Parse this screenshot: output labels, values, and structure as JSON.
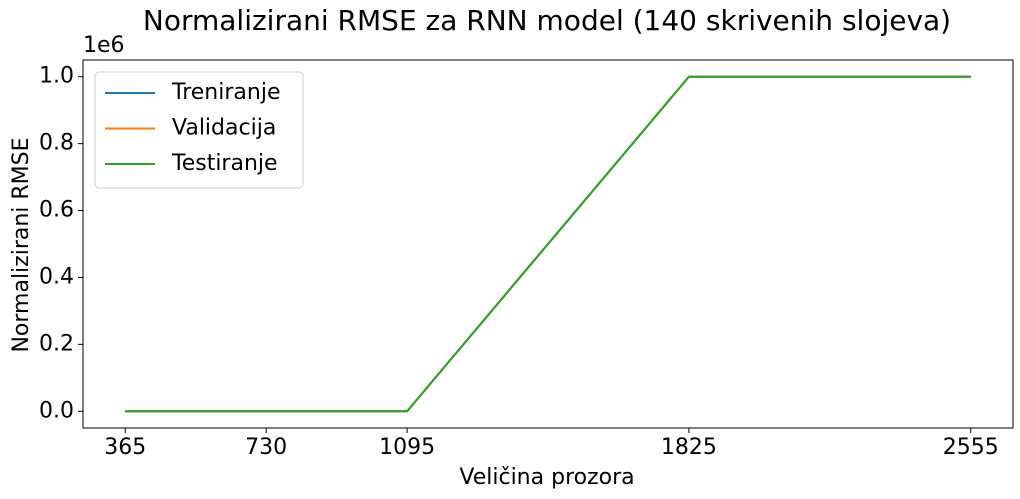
{
  "chart_data": {
    "type": "line",
    "title": "Normalizirani RMSE za RNN model (140 skrivenih slojeva)",
    "xlabel": "Veličina prozora",
    "ylabel": "Normalizirani RMSE",
    "y_offset_label": "1e6",
    "x": [
      365,
      730,
      1095,
      1825,
      2555
    ],
    "series": [
      {
        "name": "Treniranje",
        "color": "#1f77b4",
        "values": [
          0,
          0,
          0,
          1000000,
          1000000
        ]
      },
      {
        "name": "Validacija",
        "color": "#ff7f0e",
        "values": [
          0,
          0,
          0,
          1000000,
          1000000
        ]
      },
      {
        "name": "Testiranje",
        "color": "#2ca02c",
        "values": [
          0,
          0,
          0,
          1000000,
          1000000
        ]
      }
    ],
    "xlim": [
      255.5,
      2664.5
    ],
    "xticks": [
      365,
      730,
      1095,
      1825,
      2555
    ],
    "ylim": [
      -50000,
      1050000
    ],
    "yticks": [
      {
        "value": 0,
        "label": "0.0"
      },
      {
        "value": 200000,
        "label": "0.2"
      },
      {
        "value": 400000,
        "label": "0.4"
      },
      {
        "value": 600000,
        "label": "0.6"
      },
      {
        "value": 800000,
        "label": "0.8"
      },
      {
        "value": 1000000,
        "label": "1.0"
      }
    ],
    "grid": false,
    "legend": "upper left"
  }
}
